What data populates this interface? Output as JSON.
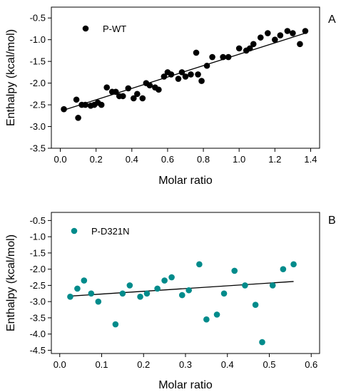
{
  "chart_data": [
    {
      "type": "scatter",
      "panel_label": "A",
      "xlabel": "Molar ratio",
      "ylabel": "Enthalpy (kcal/mol)",
      "xlim": [
        -0.05,
        1.45
      ],
      "ylim": [
        -3.5,
        -0.25
      ],
      "xticks": [
        0.0,
        0.2,
        0.4,
        0.6,
        0.8,
        1.0,
        1.2,
        1.4
      ],
      "xtick_labels": [
        "0.0",
        "0.2",
        "0.4",
        "0.6",
        "0.8",
        "1.0",
        "1.2",
        "1.4"
      ],
      "yticks": [
        -3.5,
        -3.0,
        -2.5,
        -2.0,
        -1.5,
        -1.0,
        -0.5
      ],
      "ytick_labels": [
        "-3.5",
        "-3.0",
        "-2.5",
        "-2.0",
        "-1.5",
        "-1.0",
        "-0.5"
      ],
      "grid": false,
      "legend_position": "top-left",
      "series": [
        {
          "name": "P-WT",
          "color": "#000000",
          "x": [
            0.02,
            0.09,
            0.1,
            0.12,
            0.14,
            0.17,
            0.19,
            0.21,
            0.23,
            0.26,
            0.29,
            0.31,
            0.33,
            0.35,
            0.38,
            0.41,
            0.43,
            0.46,
            0.48,
            0.5,
            0.53,
            0.55,
            0.58,
            0.6,
            0.62,
            0.66,
            0.68,
            0.7,
            0.73,
            0.76,
            0.77,
            0.79,
            0.82,
            0.85,
            0.91,
            0.94,
            1.0,
            1.04,
            1.06,
            1.08,
            1.12,
            1.16,
            1.2,
            1.23,
            1.27,
            1.3,
            1.34,
            1.37
          ],
          "y": [
            -2.6,
            -2.38,
            -2.8,
            -2.5,
            -2.5,
            -2.52,
            -2.5,
            -2.45,
            -2.5,
            -2.1,
            -2.2,
            -2.2,
            -2.3,
            -2.3,
            -2.12,
            -2.35,
            -2.25,
            -2.35,
            -2.0,
            -2.05,
            -2.1,
            -2.15,
            -1.85,
            -1.75,
            -1.8,
            -1.9,
            -1.75,
            -1.85,
            -1.8,
            -1.3,
            -1.8,
            -1.95,
            -1.6,
            -1.4,
            -1.4,
            -1.4,
            -1.2,
            -1.25,
            -1.2,
            -1.1,
            -0.95,
            -0.85,
            -1.0,
            -0.9,
            -0.8,
            -0.85,
            -1.1,
            -0.8
          ]
        }
      ],
      "fit_line": {
        "x": [
          0.02,
          1.37
        ],
        "y": [
          -2.62,
          -0.85
        ]
      }
    },
    {
      "type": "scatter",
      "panel_label": "B",
      "xlabel": "Molar ratio",
      "ylabel": "Enthalpy (kcal/mol)",
      "xlim": [
        -0.02,
        0.62
      ],
      "ylim": [
        -4.6,
        -0.25
      ],
      "xticks": [
        0.0,
        0.1,
        0.2,
        0.3,
        0.4,
        0.5,
        0.6
      ],
      "xtick_labels": [
        "0.0",
        "0.1",
        "0.2",
        "0.3",
        "0.4",
        "0.5",
        "0.6"
      ],
      "yticks": [
        -4.5,
        -4.0,
        -3.5,
        -3.0,
        -2.5,
        -2.0,
        -1.5,
        -1.0,
        -0.5
      ],
      "ytick_labels": [
        "-4.5",
        "-4.0",
        "-3.5",
        "-3.0",
        "-2.5",
        "-2.0",
        "-1.5",
        "-1.0",
        "-0.5"
      ],
      "grid": false,
      "legend_position": "top-left",
      "series": [
        {
          "name": "P-D321N",
          "color": "#008B8B",
          "x": [
            0.025,
            0.042,
            0.058,
            0.075,
            0.092,
            0.133,
            0.15,
            0.167,
            0.192,
            0.208,
            0.233,
            0.25,
            0.267,
            0.292,
            0.308,
            0.333,
            0.35,
            0.375,
            0.392,
            0.417,
            0.442,
            0.467,
            0.483,
            0.508,
            0.533,
            0.558
          ],
          "y": [
            -2.85,
            -2.6,
            -2.35,
            -2.75,
            -3.0,
            -3.7,
            -2.75,
            -2.5,
            -2.85,
            -2.75,
            -2.6,
            -2.35,
            -2.25,
            -2.8,
            -2.65,
            -1.85,
            -3.55,
            -3.4,
            -2.75,
            -2.05,
            -2.5,
            -3.1,
            -4.25,
            -2.5,
            -2.0,
            -1.85
          ]
        }
      ],
      "fit_line": {
        "x": [
          0.025,
          0.558
        ],
        "y": [
          -2.83,
          -2.38
        ]
      }
    }
  ]
}
